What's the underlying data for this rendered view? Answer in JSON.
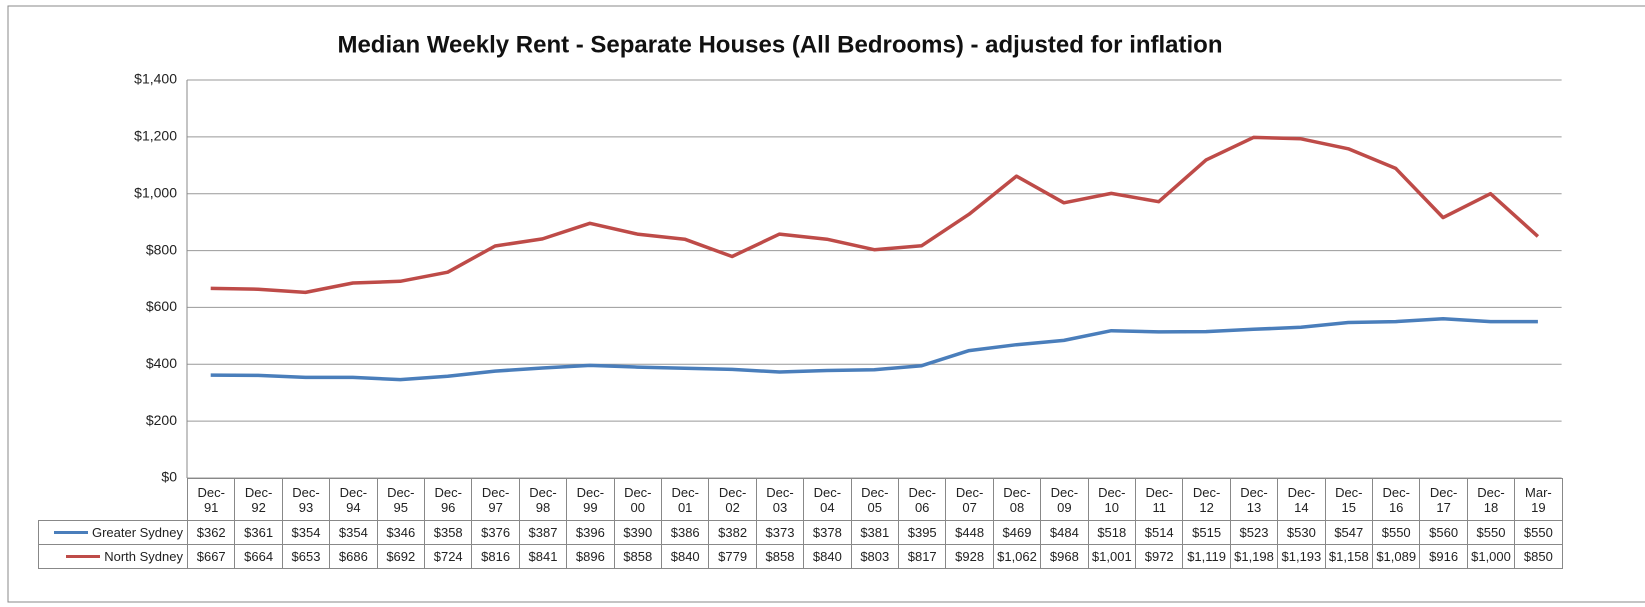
{
  "chart_data": {
    "type": "line",
    "title": "Median Weekly Rent - Separate Houses (All Bedrooms) - adjusted for inflation",
    "categories": [
      "Dec-91",
      "Dec-92",
      "Dec-93",
      "Dec-94",
      "Dec-95",
      "Dec-96",
      "Dec-97",
      "Dec-98",
      "Dec-99",
      "Dec-00",
      "Dec-01",
      "Dec-02",
      "Dec-03",
      "Dec-04",
      "Dec-05",
      "Dec-06",
      "Dec-07",
      "Dec-08",
      "Dec-09",
      "Dec-10",
      "Dec-11",
      "Dec-12",
      "Dec-13",
      "Dec-14",
      "Dec-15",
      "Dec-16",
      "Dec-17",
      "Dec-18",
      "Mar-19"
    ],
    "series": [
      {
        "name": "Greater Sydney",
        "color": "#4a7ebb",
        "values": [
          362,
          361,
          354,
          354,
          346,
          358,
          376,
          387,
          396,
          390,
          386,
          382,
          373,
          378,
          381,
          395,
          448,
          469,
          484,
          518,
          514,
          515,
          523,
          530,
          547,
          550,
          560,
          550,
          550
        ],
        "value_labels": [
          "$362",
          "$361",
          "$354",
          "$354",
          "$346",
          "$358",
          "$376",
          "$387",
          "$396",
          "$390",
          "$386",
          "$382",
          "$373",
          "$378",
          "$381",
          "$395",
          "$448",
          "$469",
          "$484",
          "$518",
          "$514",
          "$515",
          "$523",
          "$530",
          "$547",
          "$550",
          "$560",
          "$550",
          "$550"
        ]
      },
      {
        "name": "North Sydney",
        "color": "#be4b48",
        "values": [
          667,
          664,
          653,
          686,
          692,
          724,
          816,
          841,
          896,
          858,
          840,
          779,
          858,
          840,
          803,
          817,
          928,
          1062,
          968,
          1001,
          972,
          1119,
          1198,
          1193,
          1158,
          1089,
          916,
          1000,
          850
        ],
        "value_labels": [
          "$667",
          "$664",
          "$653",
          "$686",
          "$692",
          "$724",
          "$816",
          "$841",
          "$896",
          "$858",
          "$840",
          "$779",
          "$858",
          "$840",
          "$803",
          "$817",
          "$928",
          "$1,062",
          "$968",
          "$1,001",
          "$972",
          "$1,119",
          "$1,198",
          "$1,193",
          "$1,158",
          "$1,089",
          "$916",
          "$1,000",
          "$850"
        ]
      }
    ],
    "ylim": [
      0,
      1400
    ],
    "yticks": [
      {
        "value": 0,
        "label": "$0"
      },
      {
        "value": 200,
        "label": "$200"
      },
      {
        "value": 400,
        "label": "$400"
      },
      {
        "value": 600,
        "label": "$600"
      },
      {
        "value": 800,
        "label": "$800"
      },
      {
        "value": 1000,
        "label": "$1,000"
      },
      {
        "value": 1200,
        "label": "$1,200"
      },
      {
        "value": 1400,
        "label": "$1,400"
      }
    ],
    "grid": true
  }
}
